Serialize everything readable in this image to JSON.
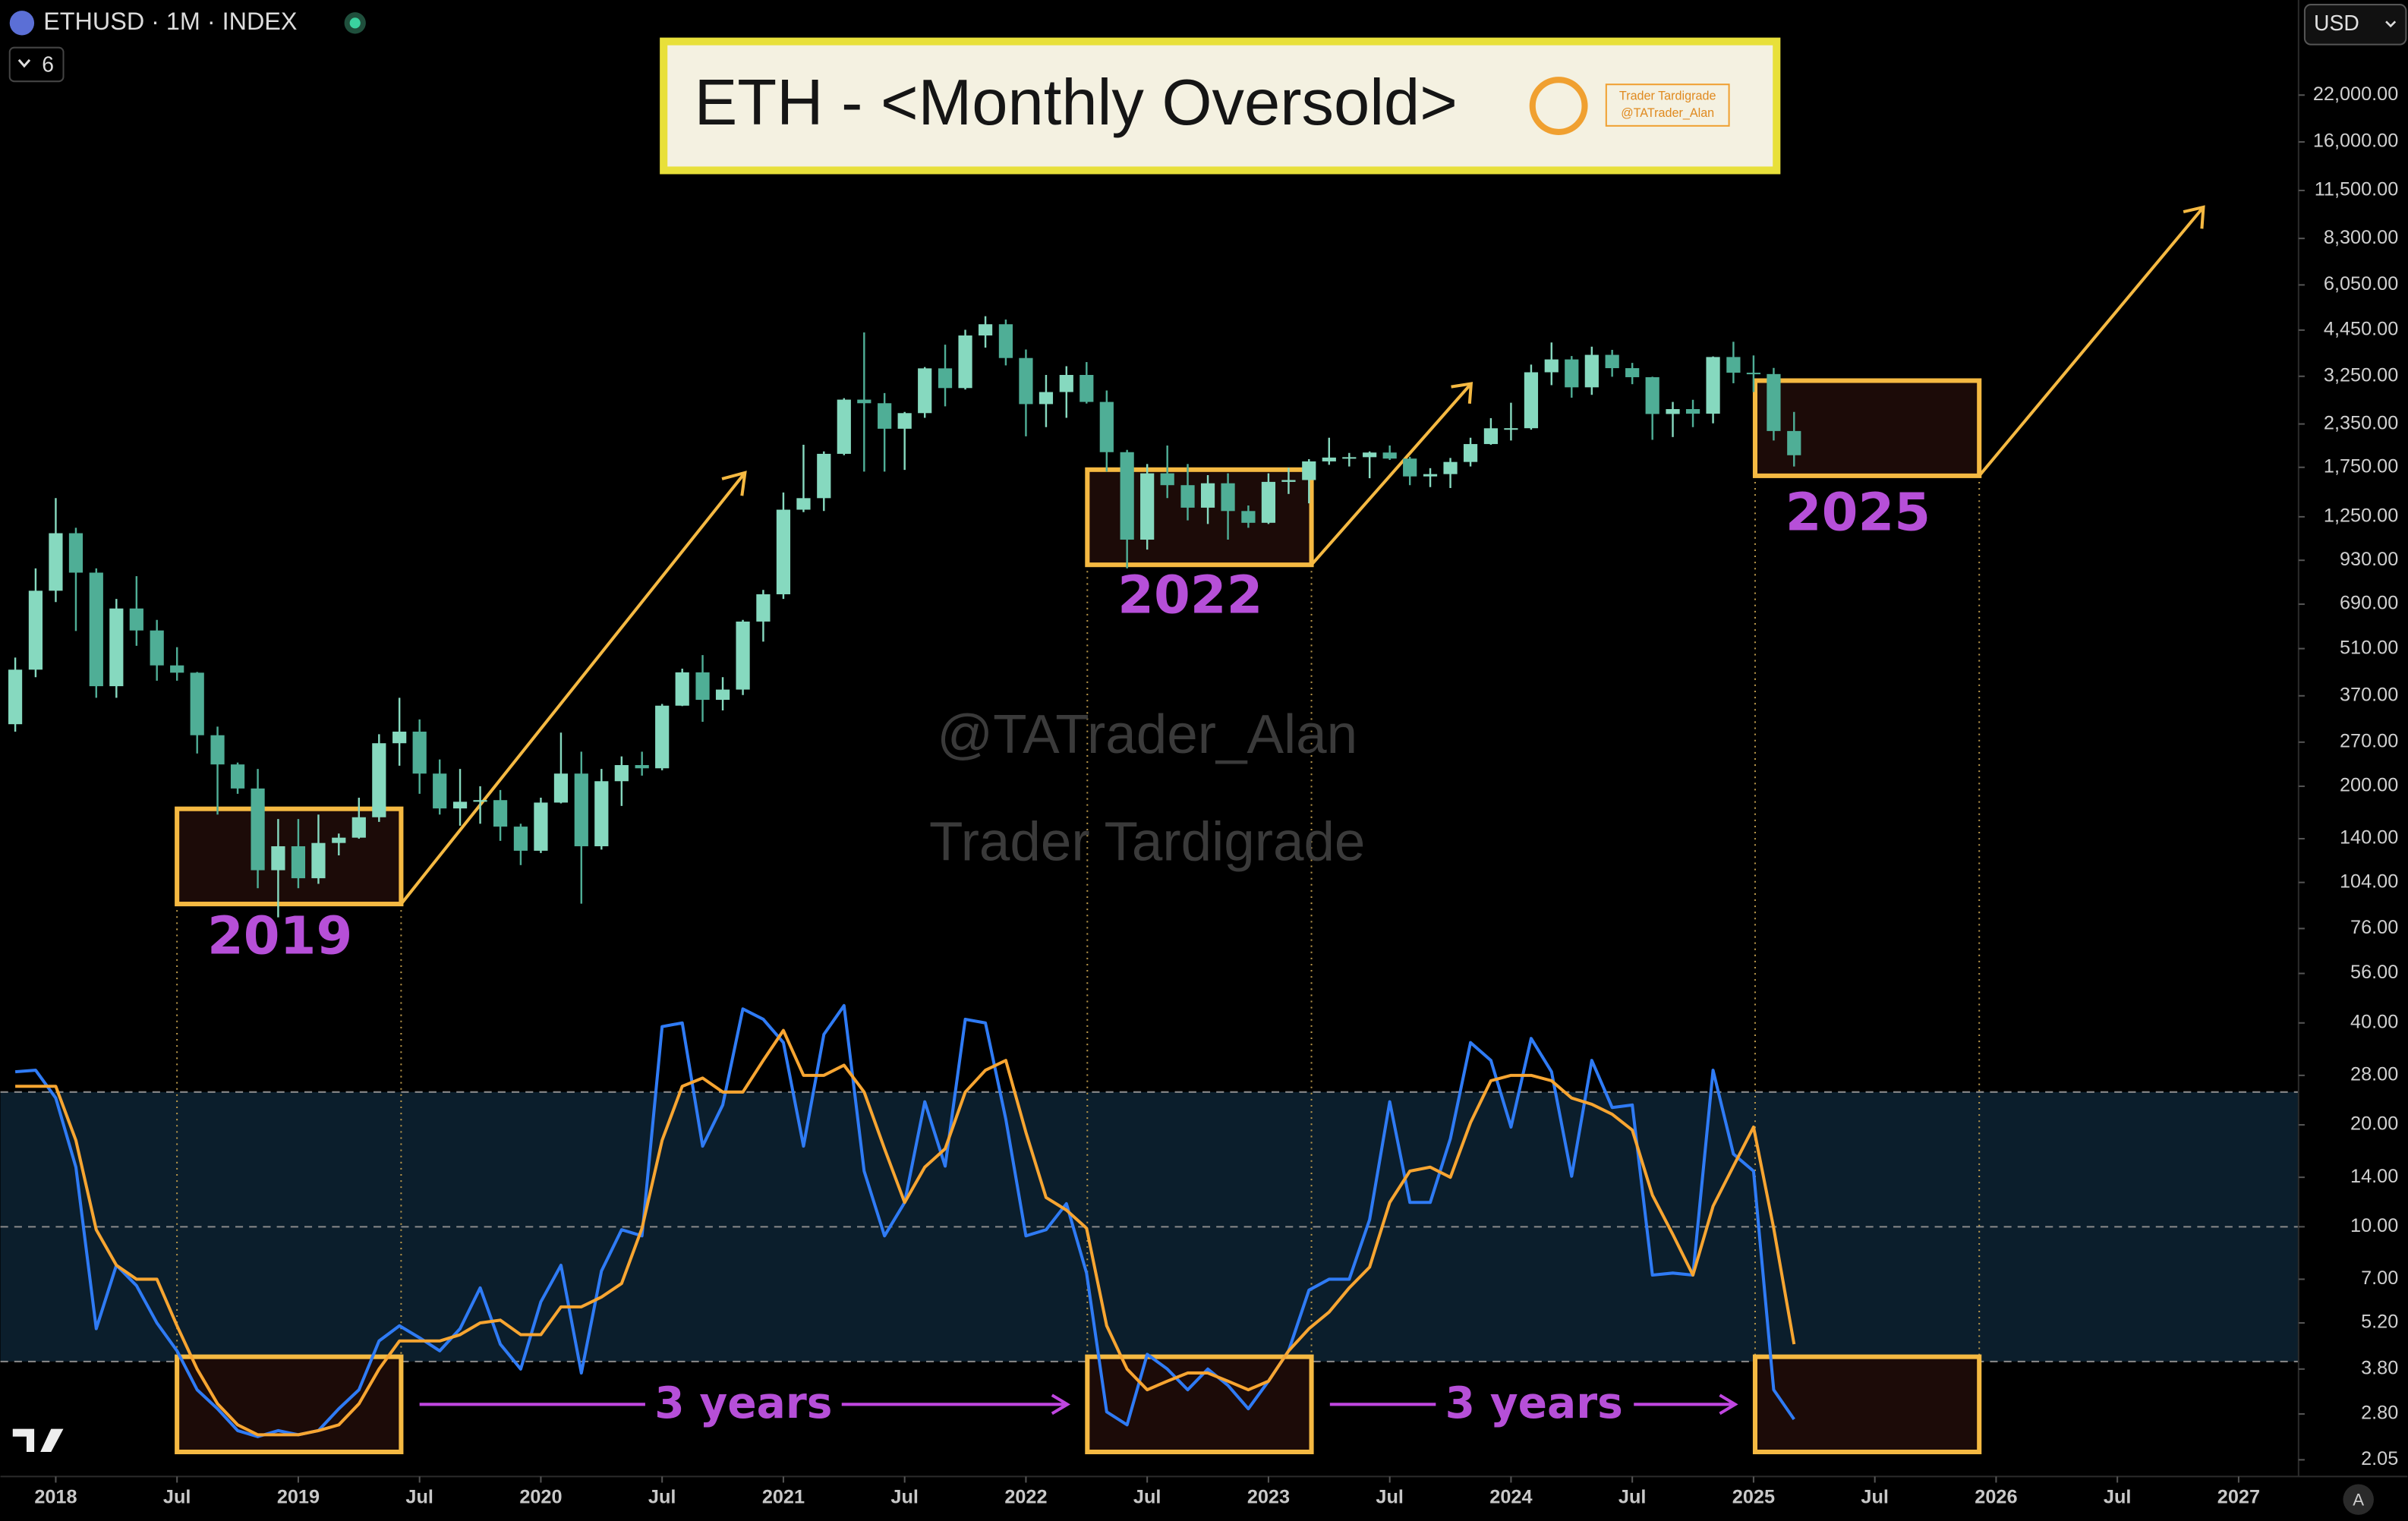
{
  "chart_data": {
    "type": "candlestick",
    "symbol": "ETHUSD · 1M · INDEX",
    "indicator_count": 6,
    "currency": "USD",
    "scale_mode": "A",
    "title": "ETH - <Monthly Oversold>",
    "badge": [
      "Trader Tardigrade",
      "@TATrader_Alan"
    ],
    "watermarks": [
      "@TATrader_Alan",
      "Trader Tardigrade"
    ],
    "annotations": [
      "2019",
      "2022",
      "2025",
      "3 years",
      "3 years"
    ],
    "log_scale": true,
    "up_color": "#86d9bf",
    "down_color": "#4fae96",
    "xlim": [
      2017.772,
      2027.247
    ],
    "xticks": [
      2018,
      {
        "value": 2018.5,
        "label": "Jul"
      },
      2019,
      {
        "value": 2019.5,
        "label": "Jul"
      },
      2020,
      {
        "value": 2020.5,
        "label": "Jul"
      },
      2021,
      {
        "value": 2021.5,
        "label": "Jul"
      },
      2022,
      {
        "value": 2022.5,
        "label": "Jul"
      },
      2023,
      {
        "value": 2023.5,
        "label": "Jul"
      },
      2024,
      {
        "value": 2024.5,
        "label": "Jul"
      },
      2025,
      {
        "value": 2025.5,
        "label": "Jul"
      },
      2026,
      {
        "value": 2026.5,
        "label": "Jul"
      },
      2027
    ],
    "ylim": [
      1.83,
      42000
    ],
    "yticks": [
      {
        "value": 22000,
        "label": "22,000.00"
      },
      {
        "value": 16000,
        "label": "16,000.00"
      },
      {
        "value": 11500,
        "label": "11,500.00"
      },
      {
        "value": 8300,
        "label": "8,300.00"
      },
      {
        "value": 6050,
        "label": "6,050.00"
      },
      {
        "value": 4450,
        "label": "4,450.00"
      },
      {
        "value": 3250,
        "label": "3,250.00"
      },
      {
        "value": 2350,
        "label": "2,350.00"
      },
      {
        "value": 1750,
        "label": "1,750.00"
      },
      {
        "value": 1250,
        "label": "1,250.00"
      },
      {
        "value": 930,
        "label": "930.00"
      },
      {
        "value": 690,
        "label": "690.00"
      },
      {
        "value": 510,
        "label": "510.00"
      },
      {
        "value": 370,
        "label": "370.00"
      },
      {
        "value": 270,
        "label": "270.00"
      },
      {
        "value": 200,
        "label": "200.00"
      },
      {
        "value": 140,
        "label": "140.00"
      },
      {
        "value": 104,
        "label": "104.00"
      },
      {
        "value": 76,
        "label": "76.00"
      },
      {
        "value": 56,
        "label": "56.00"
      },
      {
        "value": 40,
        "label": "40.00"
      },
      {
        "value": 28,
        "label": "28.00"
      },
      {
        "value": 20,
        "label": "20.00"
      },
      {
        "value": 14,
        "label": "14.00"
      },
      {
        "value": 10,
        "label": "10.00"
      },
      {
        "value": 7,
        "label": "7.00"
      },
      {
        "value": 5.2,
        "label": "5.20"
      },
      {
        "value": 3.8,
        "label": "3.80"
      },
      {
        "value": 2.8,
        "label": "2.80"
      },
      {
        "value": 2.05,
        "label": "2.05"
      }
    ],
    "levels": [
      4,
      10,
      25
    ],
    "x": [
      2017.833,
      2017.917,
      2018,
      2018.083,
      2018.167,
      2018.25,
      2018.333,
      2018.417,
      2018.5,
      2018.583,
      2018.667,
      2018.75,
      2018.833,
      2018.917,
      2019,
      2019.083,
      2019.167,
      2019.25,
      2019.333,
      2019.417,
      2019.5,
      2019.583,
      2019.667,
      2019.75,
      2019.833,
      2019.917,
      2020,
      2020.083,
      2020.167,
      2020.25,
      2020.333,
      2020.417,
      2020.5,
      2020.583,
      2020.667,
      2020.75,
      2020.833,
      2020.917,
      2021,
      2021.083,
      2021.167,
      2021.25,
      2021.333,
      2021.417,
      2021.5,
      2021.583,
      2021.667,
      2021.75,
      2021.833,
      2021.917,
      2022,
      2022.083,
      2022.167,
      2022.25,
      2022.333,
      2022.417,
      2022.5,
      2022.583,
      2022.667,
      2022.75,
      2022.833,
      2022.917,
      2023,
      2023.083,
      2023.167,
      2023.25,
      2023.333,
      2023.417,
      2023.5,
      2023.583,
      2023.667,
      2023.75,
      2023.833,
      2023.917,
      2024,
      2024.083,
      2024.167,
      2024.25,
      2024.333,
      2024.417,
      2024.5,
      2024.583,
      2024.667,
      2024.75,
      2024.833,
      2024.917,
      2025,
      2025.083,
      2025.167
    ],
    "candles": {
      "open": [
        305,
        442,
        756,
        1118,
        855,
        395,
        670,
        577,
        455,
        433,
        283,
        232,
        197,
        113,
        133,
        107,
        136,
        141,
        162,
        268,
        290,
        218,
        172,
        180,
        182,
        152,
        129,
        179,
        218,
        133,
        207,
        231,
        226,
        346,
        434,
        360,
        386,
        613,
        738,
        1312,
        1419,
        1918,
        2773,
        2706,
        2275,
        2530,
        3430,
        3000,
        4290,
        4630,
        3680,
        2690,
        2920,
        3280,
        2730,
        1940,
        1070,
        1680,
        1550,
        1330,
        1570,
        1300,
        1200,
        1585,
        1605,
        1822,
        1870,
        1875,
        1935,
        1857,
        1645,
        1671,
        1815,
        2050,
        2282,
        2283,
        3340,
        3645,
        3015,
        3760,
        3435,
        3230,
        2515,
        2600,
        2520,
        3705,
        3330,
        3300,
        2240
      ],
      "high": [
        480,
        880,
        1420,
        1160,
        880,
        715,
        835,
        620,
        515,
        435,
        300,
        235,
        225,
        160,
        160,
        165,
        145,
        185,
        285,
        365,
        315,
        240,
        225,
        200,
        195,
        155,
        185,
        288,
        253,
        225,
        245,
        253,
        350,
        445,
        488,
        420,
        620,
        760,
        1475,
        2040,
        1950,
        2800,
        4380,
        2900,
        2550,
        3460,
        4030,
        4460,
        4890,
        4780,
        3900,
        3280,
        3480,
        3580,
        2950,
        1970,
        1790,
        2030,
        1790,
        1660,
        1680,
        1350,
        1680,
        1745,
        1850,
        2140,
        1930,
        1950,
        2030,
        1880,
        1740,
        1865,
        2140,
        2445,
        2715,
        3520,
        4090,
        3730,
        3975,
        3890,
        3560,
        3240,
        2730,
        2770,
        3720,
        4110,
        3745,
        3440,
        2550
      ],
      "low": [
        290,
        420,
        700,
        575,
        365,
        365,
        520,
        410,
        410,
        250,
        165,
        190,
        100,
        82,
        100,
        103,
        125,
        140,
        157,
        230,
        190,
        165,
        153,
        155,
        138,
        117,
        127,
        178,
        90,
        130,
        175,
        215,
        223,
        345,
        310,
        335,
        372,
        535,
        715,
        1290,
        1300,
        1900,
        1700,
        1700,
        1720,
        2450,
        2650,
        2970,
        3950,
        3500,
        2160,
        2300,
        2450,
        2700,
        1700,
        880,
        1000,
        1420,
        1220,
        1190,
        1070,
        1160,
        1190,
        1460,
        1370,
        1780,
        1760,
        1625,
        1840,
        1550,
        1530,
        1520,
        1760,
        2040,
        2100,
        2260,
        3060,
        2810,
        2865,
        3240,
        3080,
        2110,
        2150,
        2300,
        2360,
        3100,
        2920,
        2100,
        1760
      ],
      "close": [
        442,
        756,
        1118,
        855,
        395,
        670,
        577,
        455,
        433,
        283,
        232,
        197,
        113,
        133,
        107,
        136,
        141,
        162,
        268,
        290,
        218,
        172,
        180,
        182,
        152,
        129,
        179,
        218,
        133,
        207,
        231,
        226,
        346,
        434,
        360,
        386,
        613,
        738,
        1312,
        1419,
        1918,
        2773,
        2706,
        2275,
        2530,
        3430,
        3000,
        4290,
        4630,
        3680,
        2690,
        2920,
        3280,
        2730,
        1940,
        1070,
        1680,
        1550,
        1330,
        1570,
        1300,
        1200,
        1585,
        1605,
        1822,
        1870,
        1875,
        1935,
        1857,
        1645,
        1671,
        1815,
        2050,
        2282,
        2283,
        3340,
        3645,
        3015,
        3760,
        3435,
        3230,
        2515,
        2600,
        2520,
        3705,
        3330,
        3300,
        2240,
        1900
      ]
    },
    "series": [
      {
        "color": "#2f7bf5",
        "values": [
          28.7,
          29,
          24,
          15,
          5.0,
          7.7,
          6.7,
          5.2,
          4.3,
          3.3,
          2.9,
          2.5,
          2.4,
          2.5,
          2.43,
          2.5,
          2.9,
          3.3,
          4.6,
          5.1,
          4.7,
          4.3,
          5.0,
          6.6,
          4.5,
          3.8,
          6.0,
          7.7,
          3.7,
          7.4,
          9.8,
          9.4,
          39,
          40,
          17.3,
          22.9,
          44,
          41,
          35,
          17.3,
          37,
          45,
          14.6,
          9.4,
          11.8,
          23.4,
          15.1,
          41,
          40,
          20.8,
          9.4,
          9.8,
          11.7,
          7.3,
          2.84,
          2.6,
          4.2,
          3.8,
          3.3,
          3.8,
          3.4,
          2.9,
          3.5,
          4.3,
          6.5,
          7.0,
          7.0,
          10.5,
          23.4,
          11.8,
          11.8,
          18.2,
          35,
          31,
          19.7,
          36,
          28.7,
          14.1,
          31,
          22.5,
          22.9,
          7.2,
          7.3,
          7.2,
          29,
          16.4,
          14.6,
          3.3,
          2.7
        ]
      },
      {
        "color": "#f7a531",
        "values": [
          26,
          26,
          26,
          18,
          9.8,
          7.7,
          7,
          7,
          5.1,
          3.8,
          3.0,
          2.6,
          2.43,
          2.43,
          2.43,
          2.5,
          2.6,
          3.0,
          3.8,
          4.6,
          4.6,
          4.6,
          4.8,
          5.2,
          5.3,
          4.8,
          4.8,
          5.8,
          5.8,
          6.2,
          6.8,
          9.9,
          18,
          26,
          27.5,
          25,
          25,
          31,
          38,
          28,
          28,
          30,
          25,
          17,
          11.8,
          15,
          17,
          25,
          29,
          31,
          19,
          12.2,
          11.2,
          9.9,
          5.1,
          3.8,
          3.3,
          3.5,
          3.7,
          3.7,
          3.5,
          3.3,
          3.5,
          4.3,
          5.0,
          5.6,
          6.6,
          7.6,
          11.8,
          14.6,
          15,
          14,
          20.3,
          27,
          28,
          28,
          27,
          24,
          23,
          21.5,
          19.3,
          12.4,
          9.5,
          7.2,
          11.5,
          15.1,
          19.7,
          9.9,
          4.5
        ]
      }
    ]
  }
}
